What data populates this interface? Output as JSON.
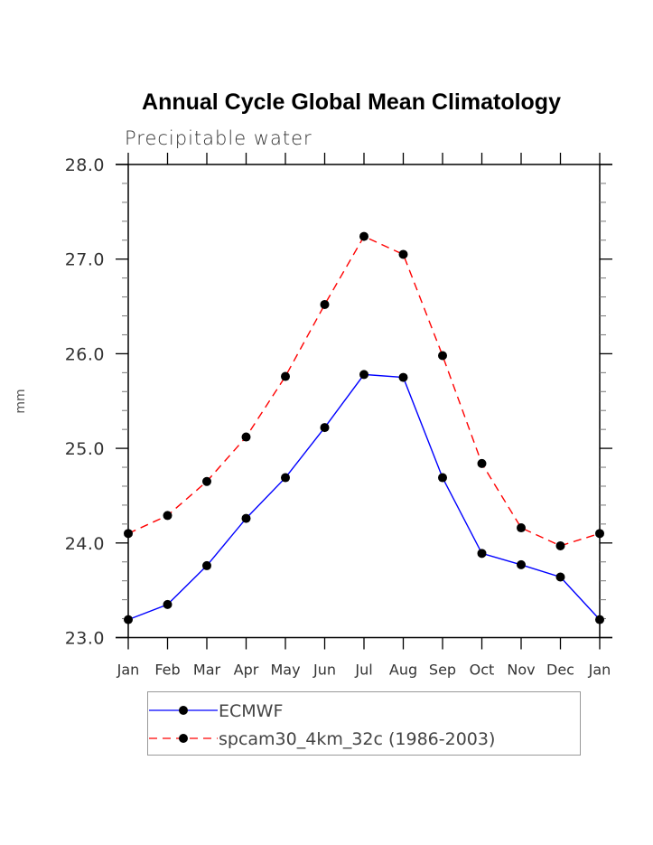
{
  "chart_data": {
    "type": "line",
    "title": "Annual Cycle Global Mean Climatology",
    "subtitle": "Precipitable water",
    "xlabel": "",
    "ylabel": "mm",
    "categories": [
      "Jan",
      "Feb",
      "Mar",
      "Apr",
      "May",
      "Jun",
      "Jul",
      "Aug",
      "Sep",
      "Oct",
      "Nov",
      "Dec",
      "Jan"
    ],
    "ylim": [
      23.0,
      28.0
    ],
    "yticks": [
      23.0,
      24.0,
      25.0,
      26.0,
      27.0,
      28.0
    ],
    "ytick_labels": [
      "23.0",
      "24.0",
      "25.0",
      "26.0",
      "27.0",
      "28.0"
    ],
    "yminor_step": 0.2,
    "grid": false,
    "legend_position": "bottom",
    "series": [
      {
        "name": "ECMWF",
        "color": "#0000ff",
        "line_style": "solid",
        "marker": "filled-circle",
        "values": [
          23.19,
          23.35,
          23.76,
          24.26,
          24.69,
          25.22,
          25.78,
          25.75,
          24.69,
          23.89,
          23.77,
          23.64,
          23.19
        ]
      },
      {
        "name": "spcam30_4km_32c (1986-2003)",
        "color": "#ff0000",
        "line_style": "dashed",
        "marker": "filled-circle",
        "values": [
          24.1,
          24.29,
          24.65,
          25.12,
          25.76,
          26.52,
          27.24,
          27.05,
          25.98,
          24.84,
          24.16,
          23.97,
          24.1
        ]
      }
    ]
  }
}
